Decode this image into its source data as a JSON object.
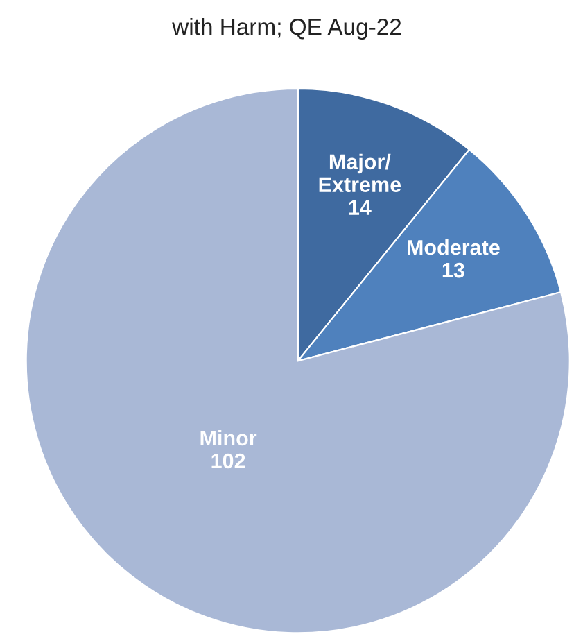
{
  "chart_data": {
    "type": "pie",
    "title": "with Harm; QE Aug-22",
    "categories": [
      "Major/\nExtreme",
      "Moderate",
      "Minor"
    ],
    "values": [
      14,
      13,
      102
    ],
    "colors": [
      "#3f6aa0",
      "#4f81bd",
      "#a9b8d6"
    ],
    "data_labels": true,
    "legend": false
  }
}
